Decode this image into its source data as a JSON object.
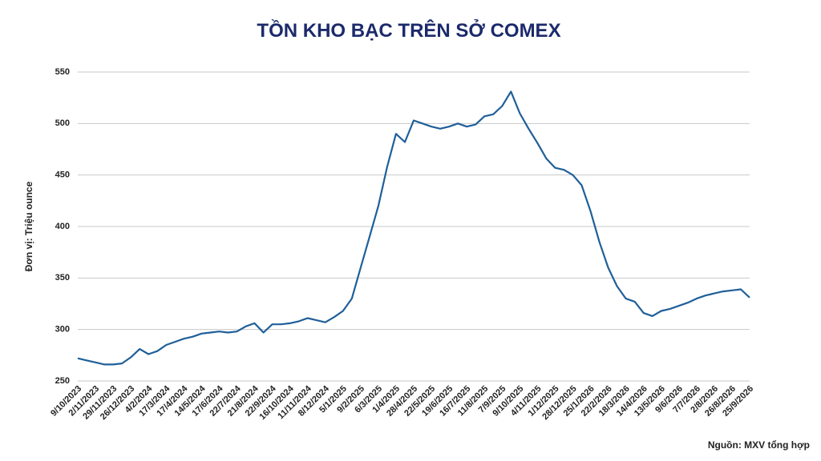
{
  "chart_data": {
    "type": "line",
    "title": "TỒN KHO BẠC TRÊN SỞ COMEX",
    "y_label": "Đơn vị:  Triệu ounce",
    "source": "Nguồn: MXV tổng hợp",
    "categories": [
      "9/10/2023",
      null,
      "2/11/2023",
      null,
      "29/11/2023",
      null,
      "26/12/2023",
      null,
      "4/2/2024",
      null,
      "17/3/2024",
      null,
      "17/4/2024",
      null,
      "14/5/2024",
      null,
      "17/6/2024",
      null,
      "22/7/2024",
      null,
      "21/8/2024",
      null,
      "22/9/2024",
      null,
      "16/10/2024",
      null,
      "11/11/2024",
      null,
      "8/12/2024",
      null,
      "5/1/2025",
      null,
      "9/2/2025",
      null,
      "6/3/2025",
      null,
      "1/4/2025",
      null,
      "28/4/2025",
      null,
      "22/5/2025",
      null,
      "19/6/2025",
      null,
      "16/7/2025",
      null,
      "11/8/2025",
      null,
      "7/9/2025",
      null,
      "9/10/2025",
      null,
      "4/11/2025",
      null,
      "1/12/2025",
      null,
      "28/12/2025",
      null,
      "25/1/2026",
      null,
      "22/2/2026",
      null,
      "18/3/2026",
      null,
      "14/4/2026",
      null,
      "13/5/2026",
      null,
      "9/6/2026",
      null,
      "7/7/2026",
      null,
      "2/8/2026",
      null,
      "26/8/2026",
      null,
      "25/9/2026"
    ],
    "series": [
      {
        "name": "Tồn kho bạc",
        "color": "#1f5f99",
        "values": [
          272,
          270,
          268,
          266,
          266,
          267,
          273,
          281,
          276,
          279,
          285,
          288,
          291,
          293,
          296,
          297,
          298,
          297,
          298,
          303,
          306,
          297,
          305,
          305,
          306,
          308,
          311,
          309,
          307,
          312,
          318,
          330,
          360,
          390,
          420,
          458,
          490,
          482,
          503,
          500,
          497,
          495,
          497,
          500,
          497,
          499,
          507,
          509,
          517,
          531,
          510,
          495,
          481,
          466,
          457,
          455,
          450,
          440,
          415,
          385,
          360,
          342,
          330,
          327,
          316,
          313,
          318,
          320,
          323,
          326,
          330,
          333,
          335,
          337,
          338,
          339,
          331
        ]
      }
    ],
    "ylim": [
      250,
      550
    ],
    "yticks": [
      250,
      300,
      350,
      400,
      450,
      500,
      550
    ],
    "grid": true
  }
}
